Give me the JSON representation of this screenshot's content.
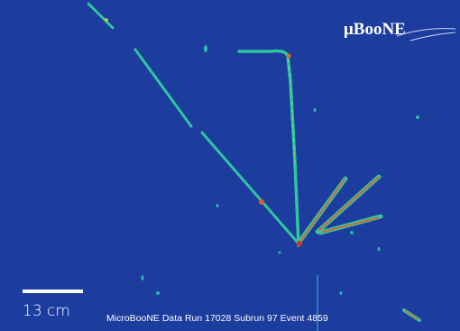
{
  "logo": {
    "text": "μBooNE"
  },
  "scale_bar": {
    "label": "13 cm"
  },
  "caption": "MicroBooNE Data Run 17028 Subrun 97 Event 4859"
}
